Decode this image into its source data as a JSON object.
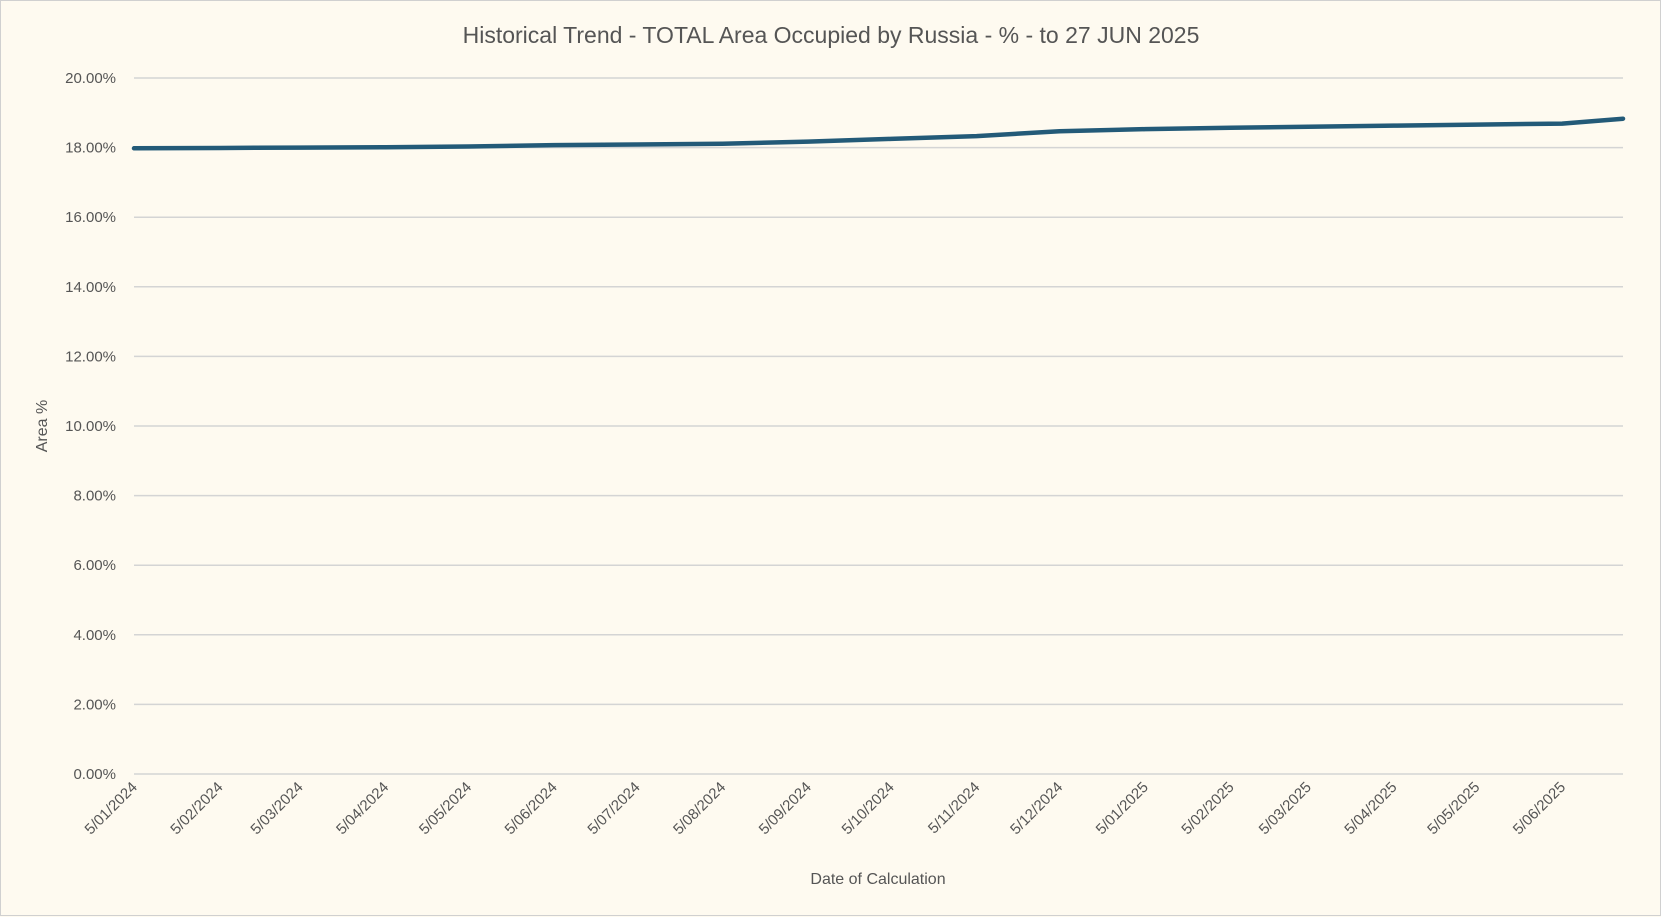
{
  "chart_data": {
    "type": "line",
    "title": "Historical Trend - TOTAL Area Occupied by Russia - % - to 27 JUN 2025",
    "xlabel": "Date of Calculation",
    "ylabel": "Area %",
    "ylim": [
      0,
      20
    ],
    "y_ticks": [
      "0.00%",
      "2.00%",
      "4.00%",
      "6.00%",
      "8.00%",
      "10.00%",
      "12.00%",
      "14.00%",
      "16.00%",
      "18.00%",
      "20.00%"
    ],
    "x_ticks": [
      "5/01/2024",
      "5/02/2024",
      "5/03/2024",
      "5/04/2024",
      "5/05/2024",
      "5/06/2024",
      "5/07/2024",
      "5/08/2024",
      "5/09/2024",
      "5/10/2024",
      "5/11/2024",
      "5/12/2024",
      "5/01/2025",
      "5/02/2025",
      "5/03/2025",
      "5/04/2025",
      "5/05/2025",
      "5/06/2025"
    ],
    "grid": true,
    "legend": "none",
    "series": [
      {
        "name": "Area %",
        "color": "#235a78",
        "x": [
          "2024-01-05",
          "2024-02-05",
          "2024-03-05",
          "2024-04-05",
          "2024-05-05",
          "2024-06-05",
          "2024-07-05",
          "2024-08-05",
          "2024-09-05",
          "2024-10-05",
          "2024-11-05",
          "2024-12-05",
          "2025-01-05",
          "2025-02-05",
          "2025-03-05",
          "2025-04-05",
          "2025-05-05",
          "2025-06-05",
          "2025-06-27"
        ],
        "values": [
          17.98,
          17.99,
          18.0,
          18.01,
          18.03,
          18.07,
          18.09,
          18.11,
          18.17,
          18.25,
          18.33,
          18.47,
          18.53,
          18.57,
          18.6,
          18.63,
          18.66,
          18.69,
          18.83
        ]
      }
    ]
  }
}
